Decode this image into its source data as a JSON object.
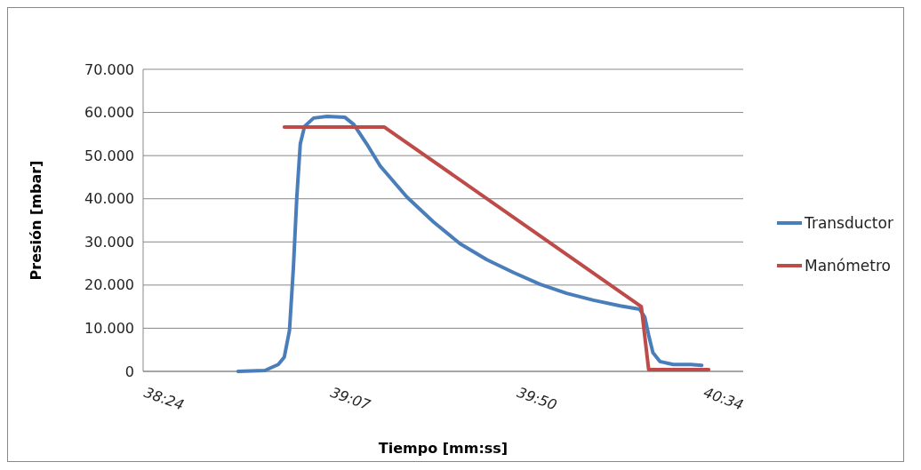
{
  "chart_data": {
    "type": "line",
    "xlabel": "Tiempo [mm:ss]",
    "ylabel": "Presión [mbar]",
    "xlim": [
      2304,
      2443
    ],
    "xticks": [
      {
        "value": 2304,
        "label": "38:24"
      },
      {
        "value": 2347.2,
        "label": "39:07"
      },
      {
        "value": 2390.4,
        "label": "39:50"
      },
      {
        "value": 2433.6,
        "label": "40:34"
      }
    ],
    "ylim": [
      0,
      70000
    ],
    "yticks": [
      0,
      {
        "value": 10000,
        "label": "10.000"
      },
      {
        "value": 20000,
        "label": "20.000"
      },
      {
        "value": 30000,
        "label": "30.000"
      },
      {
        "value": 40000,
        "label": "40.000"
      },
      {
        "value": 50000,
        "label": "50.000"
      },
      {
        "value": 60000,
        "label": "60.000"
      },
      {
        "value": 70000,
        "label": "70.000"
      }
    ],
    "grid": "y",
    "legend": "right",
    "marker": "none",
    "line_style": "solid",
    "series": [
      {
        "name": "Transductor",
        "color": "#4a7ebb",
        "x": [
          2326.0,
          2332.2,
          2335.3,
          2336.7,
          2337.9,
          2338.8,
          2339.6,
          2340.4,
          2341.4,
          2343.5,
          2346.6,
          2350.7,
          2352.8,
          2355.8,
          2358.9,
          2365.1,
          2371.3,
          2377.4,
          2383.6,
          2389.8,
          2395.9,
          2402.1,
          2408.3,
          2414.5,
          2419.0,
          2420.2,
          2421.1,
          2422.1,
          2423.7,
          2426.8,
          2430.9,
          2433.4
        ],
        "values": [
          0,
          200,
          1600,
          3300,
          9500,
          23900,
          40400,
          52700,
          56800,
          58700,
          59100,
          58900,
          57200,
          52700,
          47600,
          40400,
          34600,
          29600,
          25900,
          22900,
          20200,
          18100,
          16500,
          15200,
          14400,
          12600,
          8400,
          4300,
          2300,
          1600,
          1600,
          1400
        ]
      },
      {
        "name": "Manómetro",
        "color": "#be4b48",
        "x": [
          2336.7,
          2359.9,
          2419.4,
          2421.1,
          2435.0
        ],
        "values": [
          56600,
          56600,
          15000,
          400,
          400
        ]
      }
    ]
  }
}
